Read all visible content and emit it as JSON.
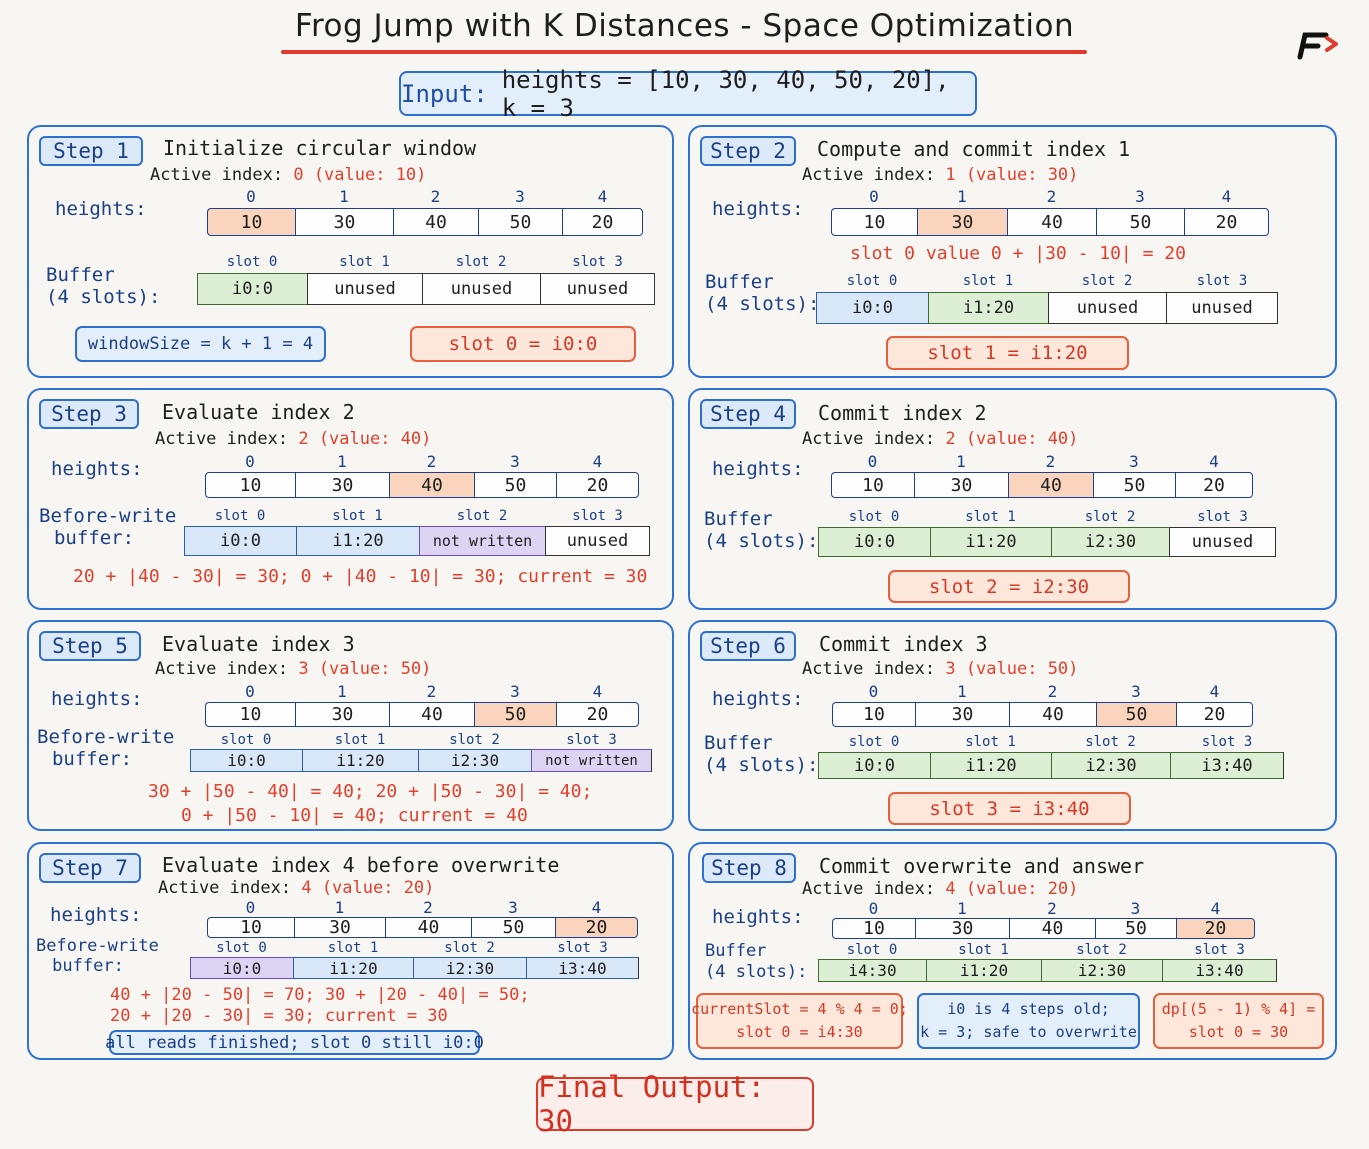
{
  "title": "Frog Jump with K Distances - Space Optimization",
  "input": {
    "label": "Input:",
    "text": "heights = [10, 30, 40, 50, 20], k = 3"
  },
  "heights_values": [
    "10",
    "30",
    "40",
    "50",
    "20"
  ],
  "heights_indices": [
    "0",
    "1",
    "2",
    "3",
    "4"
  ],
  "slot_labels": [
    "slot 0",
    "slot 1",
    "slot 2",
    "slot 3"
  ],
  "labels": {
    "heights": "heights:",
    "buffer_line1": "Buffer",
    "buffer_line2": "(4 slots):",
    "before_write_line1": "Before-write",
    "before_write_line2": "buffer:",
    "active_prefix": "Active index:"
  },
  "steps": [
    {
      "badge": "Step 1",
      "title": "Initialize circular window",
      "active_num": "0",
      "active_value": "(value: 10)",
      "buffer": [
        "i0:0",
        "unused",
        "unused",
        "unused"
      ],
      "note_blue": "windowSize = k + 1 = 4",
      "note_orange": "slot 0 = i0:0"
    },
    {
      "badge": "Step 2",
      "title": "Compute and commit index 1",
      "active_num": "1",
      "active_value": "(value: 30)",
      "calc": "slot 0 value 0 + |30 - 10| = 20",
      "buffer": [
        "i0:0",
        "i1:20",
        "unused",
        "unused"
      ],
      "note_orange": "slot 1 = i1:20"
    },
    {
      "badge": "Step 3",
      "title": "Evaluate index 2",
      "active_num": "2",
      "active_value": "(value: 40)",
      "buffer": [
        "i0:0",
        "i1:20",
        "not written",
        "unused"
      ],
      "calc": "20 + |40 - 30| = 30; 0 + |40 - 10| = 30; current = 30"
    },
    {
      "badge": "Step 4",
      "title": "Commit index 2",
      "active_num": "2",
      "active_value": "(value: 40)",
      "buffer": [
        "i0:0",
        "i1:20",
        "i2:30",
        "unused"
      ],
      "note_orange": "slot 2 = i2:30"
    },
    {
      "badge": "Step 5",
      "title": "Evaluate index 3",
      "active_num": "3",
      "active_value": "(value: 50)",
      "buffer": [
        "i0:0",
        "i1:20",
        "i2:30",
        "not written"
      ],
      "calc_line1": "30 + |50 - 40| = 40; 20 + |50 - 30| = 40;",
      "calc_line2": "0 + |50 - 10| = 40; current = 40"
    },
    {
      "badge": "Step 6",
      "title": "Commit index 3",
      "active_num": "3",
      "active_value": "(value: 50)",
      "buffer": [
        "i0:0",
        "i1:20",
        "i2:30",
        "i3:40"
      ],
      "note_orange": "slot 3 = i3:40"
    },
    {
      "badge": "Step 7",
      "title": "Evaluate index 4 before overwrite",
      "active_num": "4",
      "active_value": "(value: 20)",
      "buffer": [
        "i0:0",
        "i1:20",
        "i2:30",
        "i3:40"
      ],
      "calc_line1": "40 + |20 - 50| = 70; 30 + |20 - 40| = 50;",
      "calc_line2": "20 + |20 - 30| = 30; current = 30",
      "note_blue": "all reads finished; slot 0 still i0:0"
    },
    {
      "badge": "Step 8",
      "title": "Commit overwrite and answer",
      "active_num": "4",
      "active_value": "(value: 20)",
      "buffer": [
        "i4:30",
        "i1:20",
        "i2:30",
        "i3:40"
      ],
      "note1_line1": "currentSlot = 4 % 4 = 0;",
      "note1_line2": "slot 0 = i4:30",
      "note2_line1": "i0 is 4 steps old;",
      "note2_line2": "k = 3; safe to overwrite",
      "note3_line1": "dp[(5 - 1) % 4] =",
      "note3_line2": "slot 0 = 30"
    }
  ],
  "final": "Final Output: 30",
  "colors": {
    "accent_blue": "#2f72d6",
    "accent_red": "#e03a2f",
    "highlight": "#fad4bc",
    "buffer_green": "#dcefd4"
  }
}
